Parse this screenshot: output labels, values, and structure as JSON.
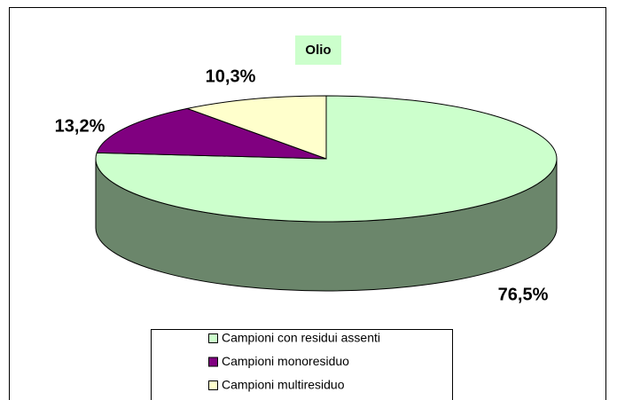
{
  "chart_data": {
    "type": "pie",
    "title": "Olio",
    "categories": [
      "Campioni con residui assenti",
      "Campioni monoresiduo",
      "Campioni multiresiduo"
    ],
    "values": [
      76.5,
      13.2,
      10.3
    ],
    "value_labels": [
      "76,5%",
      "13,2%",
      "10,3%"
    ],
    "colors": [
      "#ccffcc",
      "#800080",
      "#ffffcc"
    ],
    "legend": "bottom"
  }
}
